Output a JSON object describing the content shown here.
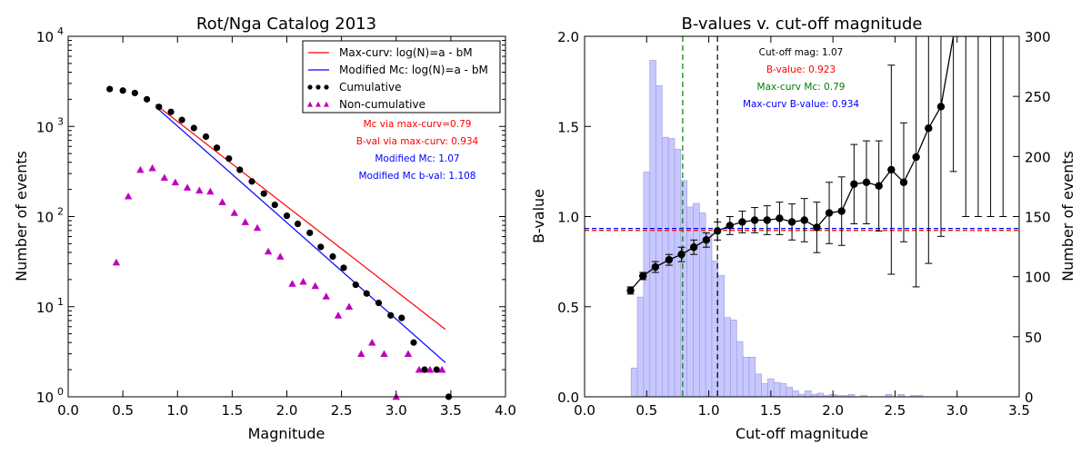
{
  "chart_data": [
    {
      "type": "scatter",
      "title": "Rot/Nga Catalog 2013",
      "xlabel": "Magnitude",
      "ylabel": "Number of events",
      "xlim": [
        0.0,
        4.0
      ],
      "ylim": [
        1,
        10000
      ],
      "yscale": "log",
      "xticks": [
        "0.0",
        "0.5",
        "1.0",
        "1.5",
        "2.0",
        "2.5",
        "3.0",
        "3.5",
        "4.0"
      ],
      "yticks": [
        {
          "value": 1,
          "base": "10",
          "exp": "0"
        },
        {
          "value": 10,
          "base": "10",
          "exp": "1"
        },
        {
          "value": 100,
          "base": "10",
          "exp": "2"
        },
        {
          "value": 1000,
          "base": "10",
          "exp": "3"
        },
        {
          "value": 10000,
          "base": "10",
          "exp": "4"
        }
      ],
      "legend_position": "top-right",
      "legend": [
        {
          "label": "Max-curv: log(N)=a - bM",
          "color": "#ff0000",
          "kind": "line"
        },
        {
          "label": "Modified Mc: log(N)=a - bM",
          "color": "#0000ff",
          "kind": "line"
        },
        {
          "label": "Cumulative",
          "color": "#000000",
          "kind": "circle"
        },
        {
          "label": "Non-cumulative",
          "color": "#bf00bf",
          "kind": "triangle"
        }
      ],
      "annotations": [
        {
          "text": "Mc via max-curv=0.79",
          "color": "#ff0000"
        },
        {
          "text": "B-val via max-curv: 0.934",
          "color": "#ff0000"
        },
        {
          "text": "Modified Mc: 1.07",
          "color": "#0000ff"
        },
        {
          "text": "Modified Mc b-val: 1.108",
          "color": "#0000ff"
        }
      ],
      "series": [
        {
          "name": "Max-curv: log(N)=a - bM",
          "type": "line",
          "color": "#ff0000",
          "x": [
            0.8,
            3.45
          ],
          "y": [
            1750,
            5.6
          ]
        },
        {
          "name": "Modified Mc: log(N)=a - bM",
          "type": "line",
          "color": "#0000ff",
          "x": [
            0.8,
            3.45
          ],
          "y": [
            1650,
            2.4
          ]
        },
        {
          "name": "Cumulative",
          "type": "scatter",
          "marker": "circle",
          "color": "#000000",
          "x": [
            0.38,
            0.5,
            0.61,
            0.72,
            0.83,
            0.94,
            1.04,
            1.15,
            1.26,
            1.36,
            1.47,
            1.57,
            1.68,
            1.79,
            1.89,
            2.0,
            2.1,
            2.21,
            2.31,
            2.42,
            2.52,
            2.63,
            2.73,
            2.84,
            2.95,
            3.05,
            3.16,
            3.26,
            3.37,
            3.48
          ],
          "y": [
            2600,
            2500,
            2350,
            2000,
            1650,
            1450,
            1180,
            960,
            770,
            580,
            440,
            330,
            245,
            180,
            135,
            102,
            83,
            66,
            46,
            36,
            27,
            17.5,
            14,
            11,
            8,
            7.5,
            4,
            2,
            2,
            1
          ]
        },
        {
          "name": "Non-cumulative",
          "type": "scatter",
          "marker": "triangle",
          "color": "#bf00bf",
          "x": [
            0.44,
            0.55,
            0.66,
            0.77,
            0.88,
            0.98,
            1.09,
            1.2,
            1.3,
            1.41,
            1.52,
            1.62,
            1.73,
            1.83,
            1.94,
            2.05,
            2.15,
            2.26,
            2.36,
            2.47,
            2.57,
            2.68,
            2.78,
            2.89,
            3.0,
            3.11,
            3.21,
            3.31,
            3.42
          ],
          "y": [
            31,
            168,
            330,
            345,
            270,
            240,
            210,
            195,
            190,
            145,
            110,
            87,
            75,
            41,
            36,
            18,
            19,
            17,
            13,
            8,
            10,
            3,
            4,
            3,
            1,
            3,
            2,
            2,
            2
          ]
        }
      ]
    },
    {
      "type": "line",
      "title": "B-values v. cut-off magnitude",
      "xlabel": "Cut-off magnitude",
      "ylabel": "B-value",
      "y2label": "Number of events",
      "xlim": [
        0.0,
        3.5
      ],
      "ylim": [
        0.0,
        2.0
      ],
      "y2lim": [
        0,
        300
      ],
      "xticks": [
        "0.0",
        "0.5",
        "1.0",
        "1.5",
        "2.0",
        "2.5",
        "3.0",
        "3.5"
      ],
      "yticks": [
        "0.0",
        "0.5",
        "1.0",
        "1.5",
        "2.0"
      ],
      "y2ticks": [
        "0",
        "50",
        "100",
        "150",
        "200",
        "250",
        "300"
      ],
      "annotations": [
        {
          "text": "Cut-off mag: 1.07",
          "color": "#000000"
        },
        {
          "text": "B-value: 0.923",
          "color": "#ff0000"
        },
        {
          "text": "Max-curv Mc: 0.79",
          "color": "#008000"
        },
        {
          "text": "Max-curv B-value: 0.934",
          "color": "#0000ff"
        }
      ],
      "vlines": [
        {
          "x": 0.79,
          "color": "#008000",
          "style": "dashed"
        },
        {
          "x": 1.07,
          "color": "#000000",
          "style": "dashed"
        }
      ],
      "hlines": [
        {
          "y": 0.923,
          "color": "#ff0000",
          "style": "dashed"
        },
        {
          "y": 0.934,
          "color": "#0000ff",
          "style": "dashed"
        }
      ],
      "histogram": {
        "axis": "right",
        "color": "#c8c8ff",
        "bin_width": 0.05,
        "bin_start": 0.375,
        "counts": [
          24,
          83,
          187,
          280,
          259,
          216,
          215,
          206,
          180,
          158,
          161,
          153,
          136,
          113,
          101,
          66,
          64,
          46,
          33,
          33,
          19,
          11,
          15,
          12,
          11,
          8,
          5,
          2,
          5,
          2,
          3,
          1,
          2,
          1,
          1,
          2,
          0,
          1,
          0,
          0,
          0,
          2,
          0,
          2,
          0,
          1,
          1
        ]
      },
      "series": [
        {
          "name": "B-value",
          "type": "errorbar",
          "color": "#000000",
          "x": [
            0.37,
            0.47,
            0.57,
            0.68,
            0.78,
            0.88,
            0.98,
            1.07,
            1.17,
            1.27,
            1.37,
            1.47,
            1.57,
            1.67,
            1.77,
            1.87,
            1.97,
            2.07,
            2.17,
            2.27,
            2.37,
            2.47,
            2.57,
            2.67,
            2.77,
            2.87,
            2.97,
            3.07,
            3.17,
            3.27,
            3.37
          ],
          "y": [
            0.59,
            0.67,
            0.72,
            0.76,
            0.79,
            0.83,
            0.87,
            0.92,
            0.95,
            0.97,
            0.98,
            0.98,
            0.99,
            0.97,
            0.98,
            0.94,
            1.02,
            1.03,
            1.18,
            1.19,
            1.17,
            1.26,
            1.19,
            1.33,
            1.49,
            1.61,
            2.05,
            2.5,
            2.5,
            2.5,
            2.5
          ],
          "err": [
            0.02,
            0.02,
            0.03,
            0.03,
            0.04,
            0.04,
            0.04,
            0.05,
            0.05,
            0.06,
            0.07,
            0.08,
            0.09,
            0.1,
            0.12,
            0.14,
            0.17,
            0.19,
            0.22,
            0.23,
            0.25,
            0.58,
            0.33,
            0.72,
            0.75,
            0.72,
            0.8,
            1.5,
            1.5,
            1.5,
            1.5
          ]
        }
      ]
    }
  ]
}
